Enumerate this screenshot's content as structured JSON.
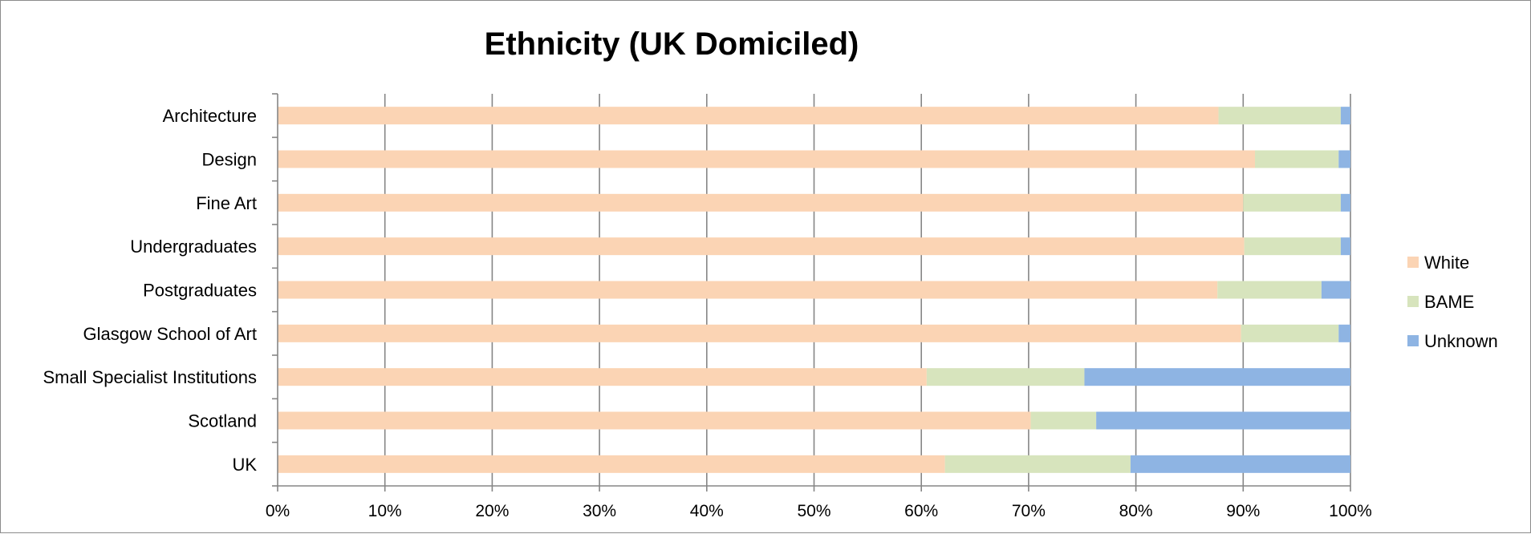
{
  "chart_data": {
    "type": "bar",
    "orientation": "horizontal",
    "stacked": "percent",
    "title": "Ethnicity (UK Domiciled)",
    "categories": [
      "UK",
      "Scotland",
      "Small Specialist Institutions",
      "Glasgow School of Art",
      "Postgraduates",
      "Undergraduates",
      "Fine Art",
      "Design",
      "Architecture"
    ],
    "series": [
      {
        "name": "White",
        "color": "#FBD4B4",
        "values": [
          62.2,
          70.2,
          60.5,
          89.8,
          87.6,
          90.1,
          90.0,
          91.1,
          87.7
        ]
      },
      {
        "name": "BAME",
        "color": "#D7E4BD",
        "values": [
          17.3,
          6.1,
          14.7,
          9.1,
          9.7,
          9.0,
          9.1,
          7.8,
          11.4
        ]
      },
      {
        "name": "Unknown",
        "color": "#8EB4E3",
        "values": [
          20.5,
          23.7,
          24.8,
          1.1,
          2.7,
          0.9,
          0.9,
          1.1,
          0.9
        ]
      }
    ],
    "xticks": [
      "0%",
      "10%",
      "20%",
      "30%",
      "40%",
      "50%",
      "60%",
      "70%",
      "80%",
      "90%",
      "100%"
    ],
    "xlim": [
      0,
      100
    ],
    "grid": true,
    "legend_position": "right"
  }
}
